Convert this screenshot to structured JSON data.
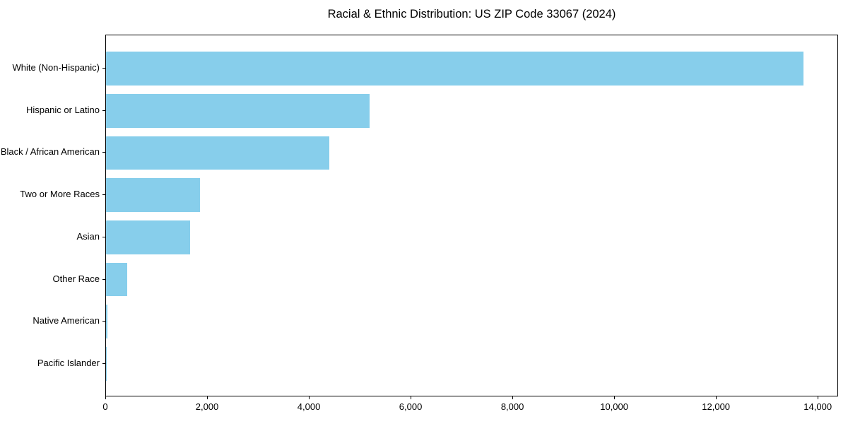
{
  "title": "Racial & Ethnic Distribution: US ZIP Code 33067 (2024)",
  "colors": {
    "bar": "#87CEEB",
    "text": "#000000",
    "spine": "#000000",
    "background": "#ffffff"
  },
  "chart_data": {
    "type": "bar",
    "orientation": "horizontal",
    "title": "Racial & Ethnic Distribution: US ZIP Code 33067 (2024)",
    "xlabel": "",
    "ylabel": "",
    "categories": [
      "White (Non-Hispanic)",
      "Hispanic or Latino",
      "Black / African American",
      "Two or More Races",
      "Asian",
      "Other Race",
      "Native American",
      "Pacific Islander"
    ],
    "values": [
      13700,
      5180,
      4390,
      1840,
      1650,
      420,
      25,
      10
    ],
    "xlim": [
      0,
      14400
    ],
    "xticks": [
      0,
      2000,
      4000,
      6000,
      8000,
      10000,
      12000,
      14000
    ],
    "xtick_labels": [
      "0",
      "2,000",
      "4,000",
      "6,000",
      "8,000",
      "10,000",
      "12,000",
      "14,000"
    ],
    "grid": false,
    "legend": null,
    "bar_color": "#87CEEB"
  }
}
